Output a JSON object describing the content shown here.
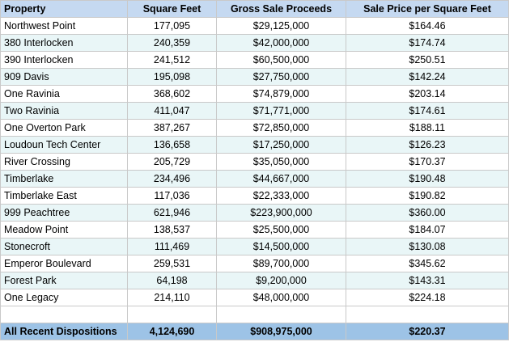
{
  "table": {
    "headers": [
      "Property",
      "Square Feet",
      "Gross Sale Proceeds",
      "Sale Price per Square Feet"
    ],
    "rows": [
      [
        "Northwest Point",
        "177,095",
        "$29,125,000",
        "$164.46"
      ],
      [
        "380 Interlocken",
        "240,359",
        "$42,000,000",
        "$174.74"
      ],
      [
        "390 Interlocken",
        "241,512",
        "$60,500,000",
        "$250.51"
      ],
      [
        "909 Davis",
        "195,098",
        "$27,750,000",
        "$142.24"
      ],
      [
        "One Ravinia",
        "368,602",
        "$74,879,000",
        "$203.14"
      ],
      [
        "Two Ravinia",
        "411,047",
        "$71,771,000",
        "$174.61"
      ],
      [
        "One Overton Park",
        "387,267",
        "$72,850,000",
        "$188.11"
      ],
      [
        "Loudoun Tech Center",
        "136,658",
        "$17,250,000",
        "$126.23"
      ],
      [
        "River Crossing",
        "205,729",
        "$35,050,000",
        "$170.37"
      ],
      [
        "Timberlake",
        "234,496",
        "$44,667,000",
        "$190.48"
      ],
      [
        "Timberlake East",
        "117,036",
        "$22,333,000",
        "$190.82"
      ],
      [
        "999 Peachtree",
        "621,946",
        "$223,900,000",
        "$360.00"
      ],
      [
        "Meadow Point",
        "138,537",
        "$25,500,000",
        "$184.07"
      ],
      [
        "Stonecroft",
        "111,469",
        "$14,500,000",
        "$130.08"
      ],
      [
        "Emperor Boulevard",
        "259,531",
        "$89,700,000",
        "$345.62"
      ],
      [
        "Forest Park",
        "64,198",
        "$9,200,000",
        "$143.31"
      ],
      [
        "One Legacy",
        "214,110",
        "$48,000,000",
        "$224.18"
      ]
    ],
    "total": [
      "All Recent Dispositions",
      "4,124,690",
      "$908,975,000",
      "$220.37"
    ]
  },
  "colors": {
    "header_bg": "#c5d9f1",
    "alt_row_bg": "#e9f6f7",
    "total_bg": "#9dc3e6",
    "grid": "#c9c9c9"
  }
}
